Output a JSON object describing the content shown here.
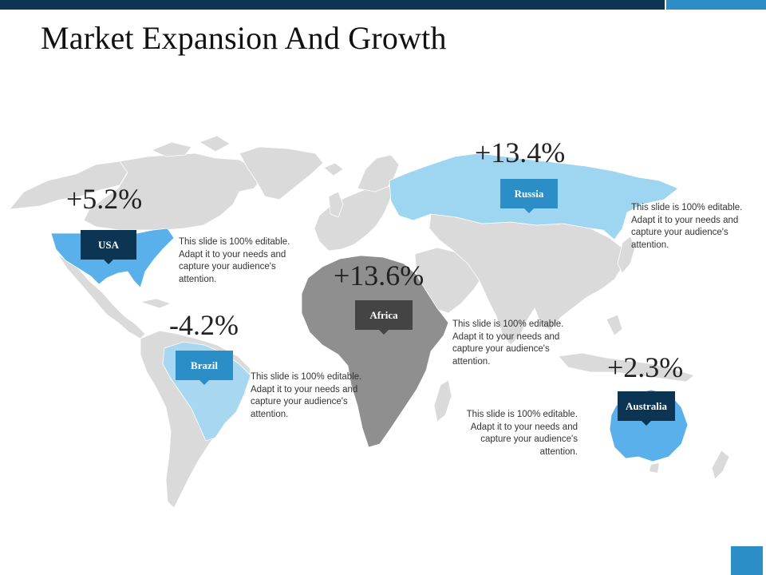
{
  "slide": {
    "title": "Market Expansion And Growth",
    "colors": {
      "dark_blue": "#0b3552",
      "accent_blue": "#2b8ec6",
      "light_blue": "#9ed5f0",
      "land_gray": "#dadada",
      "africa_gray": "#8f8f8f",
      "australia_blue": "#5ab0ea"
    }
  },
  "regions": {
    "usa": {
      "label": "USA",
      "change": "+5.2%",
      "text": [
        "This slide is 100% editable.",
        "Adapt it to your needs and",
        "capture your audience's",
        "attention."
      ]
    },
    "russia": {
      "label": "Russia",
      "change": "+13.4%",
      "text": [
        "This slide is 100% editable.",
        "Adapt it to your needs and",
        "capture your audience's",
        "attention."
      ]
    },
    "africa": {
      "label": "Africa",
      "change": "+13.6%",
      "text": [
        "This slide is 100% editable.",
        "Adapt it to your needs and",
        "capture your audience's",
        "attention."
      ]
    },
    "brazil": {
      "label": "Brazil",
      "change": "-4.2%",
      "text": [
        "This slide is 100% editable.",
        "Adapt it to your needs and",
        "capture your audience's",
        "attention."
      ]
    },
    "australia": {
      "label": "Australia",
      "change": "+2.3%",
      "text": [
        "This slide is 100% editable.",
        "Adapt it to your needs and",
        "capture your audience's",
        "attention."
      ]
    }
  }
}
